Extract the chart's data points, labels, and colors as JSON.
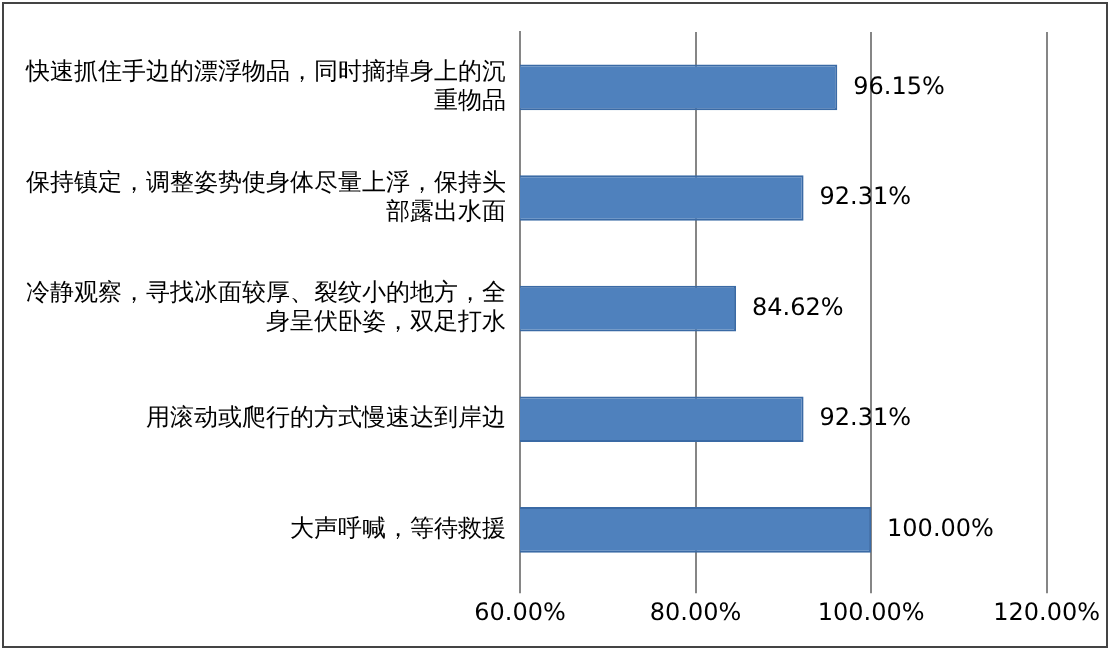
{
  "chart_data": {
    "type": "bar",
    "orientation": "horizontal",
    "categories": [
      "快速抓住手边的漂浮物品，同时摘掉身上的沉重物品",
      "保持镇定，调整姿势使身体尽量上浮，保持头部露出水面",
      "冷静观察，寻找冰面较厚、裂纹小的地方，全身呈伏卧姿，双足打水",
      "用滚动或爬行的方式慢速达到岸边",
      "大声呼喊，等待救援"
    ],
    "values": [
      96.15,
      92.31,
      84.62,
      92.31,
      100
    ],
    "value_labels": [
      "96.15%",
      "92.31%",
      "84.62%",
      "92.31%",
      "100.00%"
    ],
    "color": "#4f81bd",
    "xlim": [
      60,
      120
    ],
    "xticks": [
      {
        "value": 60,
        "label": "60.00%"
      },
      {
        "value": 80,
        "label": "80.00%"
      },
      {
        "value": 100,
        "label": "100.00%"
      },
      {
        "value": 120,
        "label": "120.00%"
      }
    ],
    "grid": "x"
  }
}
